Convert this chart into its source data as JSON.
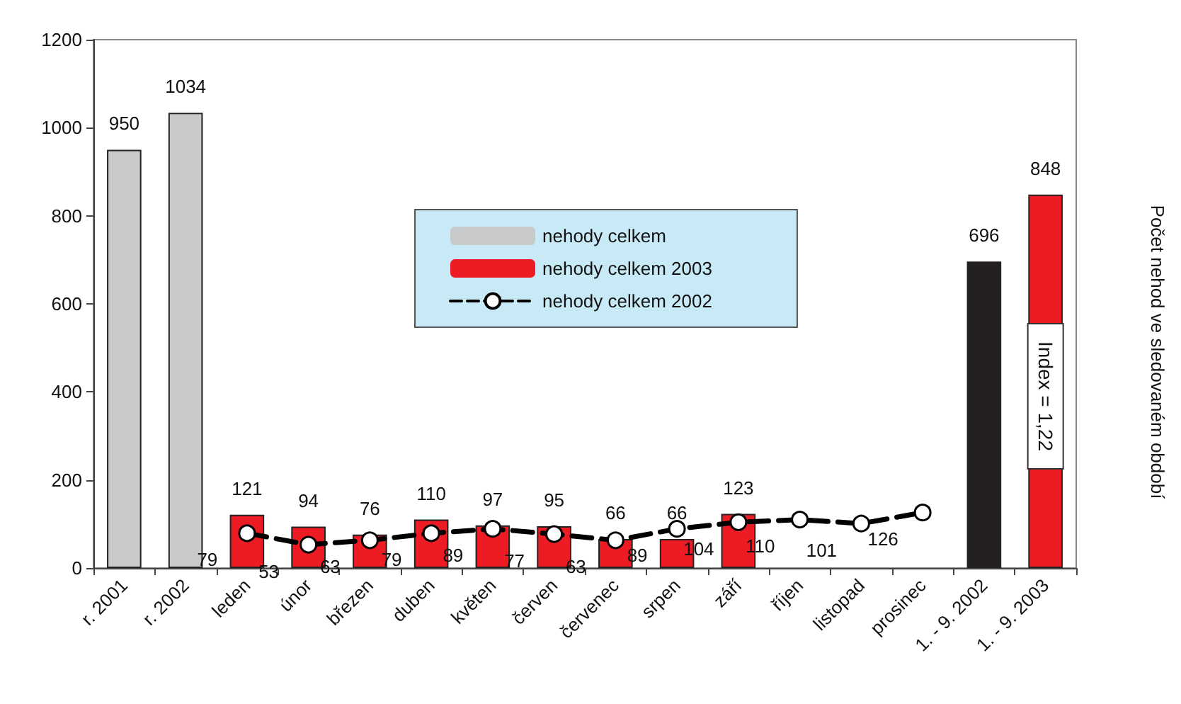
{
  "chart_data": {
    "type": "bar",
    "categories": [
      "r. 2001",
      "r. 2002",
      "leden",
      "únor",
      "březen",
      "duben",
      "květen",
      "červen",
      "červenec",
      "srpen",
      "září",
      "říjen",
      "listopad",
      "prosinec",
      "1. - 9. 2002",
      "1. - 9. 2003"
    ],
    "series": [
      {
        "name": "nehody celkem",
        "color": "#c8c9cb",
        "colors": [
          "#c8c9cb",
          "#c8c9cb",
          null,
          null,
          null,
          null,
          null,
          null,
          null,
          null,
          null,
          null,
          null,
          null,
          "#231f20",
          null
        ],
        "values": [
          950,
          1034,
          null,
          null,
          null,
          null,
          null,
          null,
          null,
          null,
          null,
          null,
          null,
          null,
          696,
          null
        ]
      },
      {
        "name": "nehody celkem 2003",
        "color": "#ed1c24",
        "values": [
          null,
          null,
          121,
          94,
          76,
          110,
          97,
          95,
          66,
          66,
          123,
          null,
          null,
          null,
          null,
          848
        ]
      },
      {
        "name": "nehody celkem 2002",
        "type": "line",
        "color": "#000000",
        "marker": "circle",
        "line_style": "dashed",
        "values": [
          null,
          null,
          79,
          53,
          63,
          79,
          89,
          77,
          63,
          89,
          104,
          110,
          101,
          126,
          null,
          null
        ]
      }
    ],
    "ylabel": "Počet nehod ve sledovaném období",
    "ylim": [
      0,
      1200
    ],
    "yticks": [
      0,
      200,
      400,
      600,
      800,
      1000,
      1200
    ],
    "grid": false,
    "legend": "top",
    "data_labels": true,
    "annotations": [
      "Index = 1,22"
    ]
  }
}
